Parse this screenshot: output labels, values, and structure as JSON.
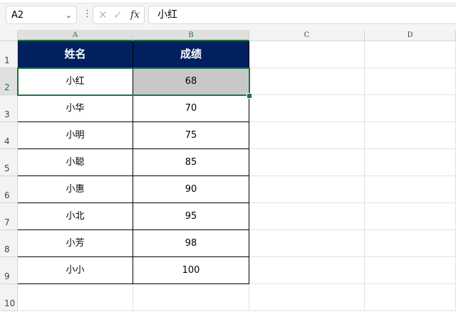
{
  "name_box": "A2",
  "formula_bar": {
    "cancel_icon": "✕",
    "enter_icon": "✓",
    "fx_label": "fx",
    "value": "小红"
  },
  "columns": [
    "A",
    "B",
    "C",
    "D"
  ],
  "rows": [
    "1",
    "2",
    "3",
    "4",
    "5",
    "6",
    "7",
    "8",
    "9",
    "10"
  ],
  "table": {
    "headers": [
      "姓名",
      "成绩"
    ],
    "data": [
      [
        "小红",
        "68"
      ],
      [
        "小华",
        "70"
      ],
      [
        "小明",
        "75"
      ],
      [
        "小聪",
        "85"
      ],
      [
        "小惠",
        "90"
      ],
      [
        "小北",
        "95"
      ],
      [
        "小芳",
        "98"
      ],
      [
        "小小",
        "100"
      ]
    ]
  },
  "colors": {
    "header_fill": "#002060",
    "selection": "#217346",
    "highlight_fill": "#c8c8c8"
  }
}
